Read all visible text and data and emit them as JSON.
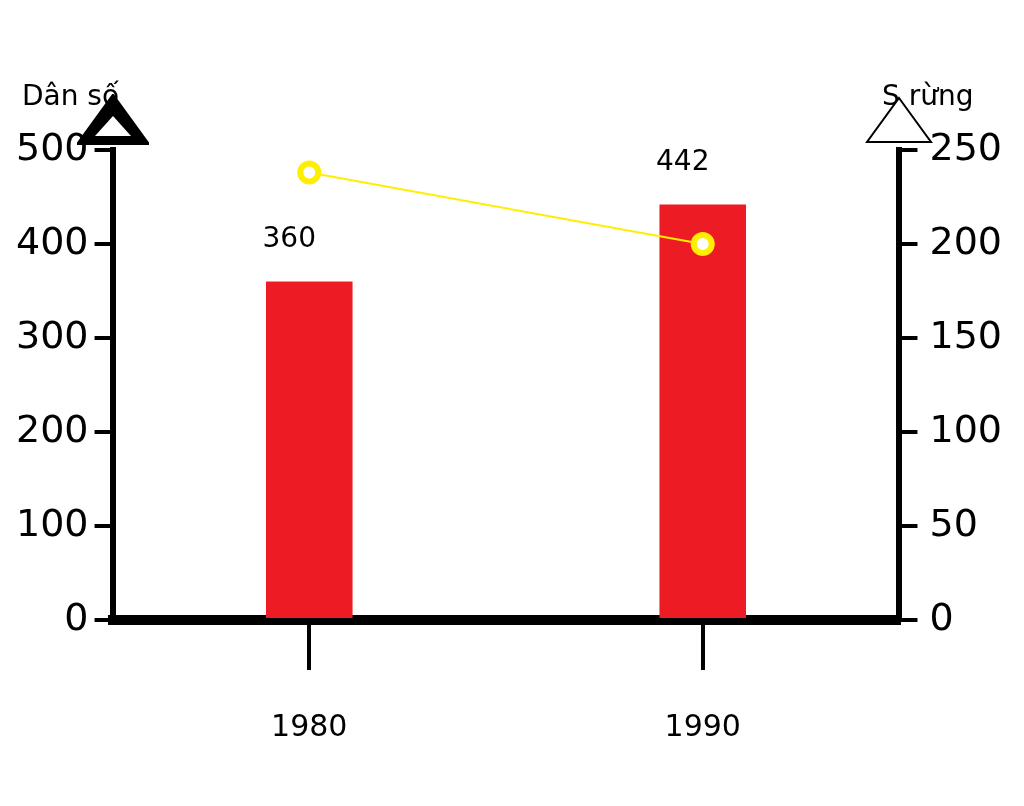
{
  "chart_data": {
    "type": "bar",
    "ylabel": "Dân số",
    "y2label": "S rừng",
    "categories": [
      "1980",
      "1990"
    ],
    "series": [
      {
        "color": "#ed1c24",
        "values": [
          360,
          442
        ],
        "value_labels": [
          "360",
          "442"
        ]
      },
      {
        "type": "line",
        "axis": "y2",
        "color": "#ffee00",
        "values": [
          238,
          200
        ],
        "marker": "circle"
      }
    ],
    "ylim": [
      0,
      500
    ],
    "yticks": [
      0,
      100,
      200,
      300,
      400,
      500
    ],
    "y2lim": [
      0,
      250
    ],
    "y2ticks": [
      0,
      50,
      100,
      150,
      200,
      250
    ]
  }
}
